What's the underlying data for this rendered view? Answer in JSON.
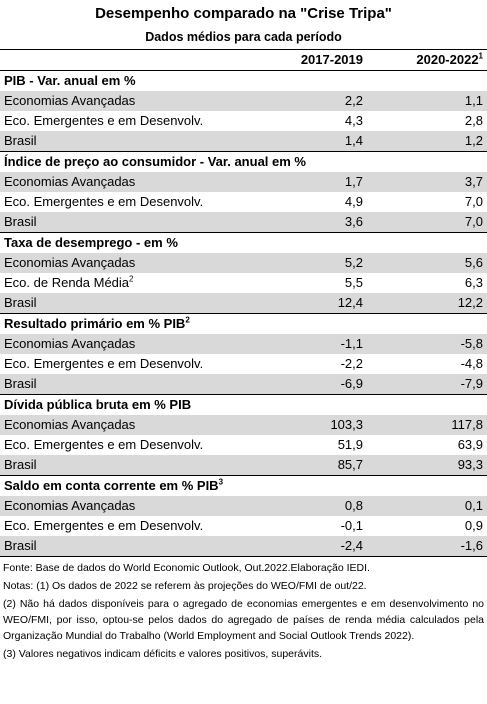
{
  "header": {
    "title": "Desempenho comparado na \"Crise Tripa\"",
    "subtitle": "Dados médios para cada período"
  },
  "table": {
    "columns": [
      {
        "label": "2017-2019"
      },
      {
        "label": "2020-2022",
        "note": "1"
      }
    ],
    "sections": [
      {
        "title": "PIB - Var. anual em %",
        "rows": [
          {
            "label": "Economias Avançadas",
            "values": [
              "2,2",
              "1,1"
            ]
          },
          {
            "label": "Eco. Emergentes e em Desenvolv.",
            "values": [
              "4,3",
              "2,8"
            ]
          },
          {
            "label": "Brasil",
            "values": [
              "1,4",
              "1,2"
            ]
          }
        ]
      },
      {
        "title": "Índice de preço ao consumidor - Var. anual em %",
        "rows": [
          {
            "label": "Economias Avançadas",
            "values": [
              "1,7",
              "3,7"
            ]
          },
          {
            "label": "Eco. Emergentes e em Desenvolv.",
            "values": [
              "4,9",
              "7,0"
            ]
          },
          {
            "label": "Brasil",
            "values": [
              "3,6",
              "7,0"
            ]
          }
        ]
      },
      {
        "title": "Taxa de desemprego - em %",
        "rows": [
          {
            "label": "Economias Avançadas",
            "values": [
              "5,2",
              "5,6"
            ]
          },
          {
            "label": "Eco. de Renda Média",
            "note": "2",
            "values": [
              "5,5",
              "6,3"
            ]
          },
          {
            "label": "Brasil",
            "values": [
              "12,4",
              "12,2"
            ]
          }
        ]
      },
      {
        "title": "Resultado primário em % PIB",
        "note": "2",
        "rows": [
          {
            "label": "Economias Avançadas",
            "values": [
              "-1,1",
              "-5,8"
            ]
          },
          {
            "label": "Eco. Emergentes e em Desenvolv.",
            "values": [
              "-2,2",
              "-4,8"
            ]
          },
          {
            "label": "Brasil",
            "values": [
              "-6,9",
              "-7,9"
            ]
          }
        ]
      },
      {
        "title": "Dívida pública bruta em % PIB",
        "rows": [
          {
            "label": "Economias Avançadas",
            "values": [
              "103,3",
              "117,8"
            ]
          },
          {
            "label": "Eco. Emergentes e em Desenvolv.",
            "values": [
              "51,9",
              "63,9"
            ]
          },
          {
            "label": "Brasil",
            "values": [
              "85,7",
              "93,3"
            ]
          }
        ]
      },
      {
        "title": "Saldo em conta corrente em % PIB",
        "note": "3",
        "rows": [
          {
            "label": "Economias Avançadas",
            "values": [
              "0,8",
              "0,1"
            ]
          },
          {
            "label": "Eco. Emergentes e em Desenvolv.",
            "values": [
              "-0,1",
              "0,9"
            ]
          },
          {
            "label": "Brasil",
            "values": [
              "-2,4",
              "-1,6"
            ]
          }
        ]
      }
    ]
  },
  "footnotes": [
    "Fonte: Base de dados do World Economic Outlook, Out.2022.Elaboração IEDI.",
    "Notas: (1) Os dados de 2022 se referem às projeções do WEO/FMI de out/22.",
    "(2) Não há dados disponíveis para o agregado de economias emergentes e em desenvolvimento no WEO/FMI, por isso, optou-se pelos dados do agregado de países de renda média calculados pela Organização Mundial do Trabalho (World Employment and Social Outlook Trends 2022).",
    "(3) Valores negativos indicam déficits e valores positivos, superávits."
  ]
}
